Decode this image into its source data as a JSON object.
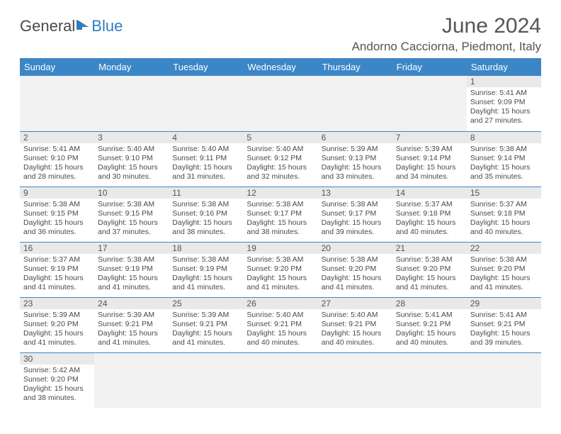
{
  "brand": {
    "part1": "General",
    "part2": "Blue"
  },
  "title": "June 2024",
  "location": "Andorno Cacciorna, Piedmont, Italy",
  "colors": {
    "header_bg": "#3b86c7",
    "header_text": "#ffffff",
    "daynum_bg": "#e9e9e9",
    "empty_bg": "#f2f2f2",
    "rule": "#3b86c7",
    "text": "#4a4a4a"
  },
  "weekdays": [
    "Sunday",
    "Monday",
    "Tuesday",
    "Wednesday",
    "Thursday",
    "Friday",
    "Saturday"
  ],
  "weeks": [
    [
      null,
      null,
      null,
      null,
      null,
      null,
      {
        "n": "1",
        "sr": "5:41 AM",
        "ss": "9:09 PM",
        "dl": "15 hours and 27 minutes."
      }
    ],
    [
      {
        "n": "2",
        "sr": "5:41 AM",
        "ss": "9:10 PM",
        "dl": "15 hours and 28 minutes."
      },
      {
        "n": "3",
        "sr": "5:40 AM",
        "ss": "9:10 PM",
        "dl": "15 hours and 30 minutes."
      },
      {
        "n": "4",
        "sr": "5:40 AM",
        "ss": "9:11 PM",
        "dl": "15 hours and 31 minutes."
      },
      {
        "n": "5",
        "sr": "5:40 AM",
        "ss": "9:12 PM",
        "dl": "15 hours and 32 minutes."
      },
      {
        "n": "6",
        "sr": "5:39 AM",
        "ss": "9:13 PM",
        "dl": "15 hours and 33 minutes."
      },
      {
        "n": "7",
        "sr": "5:39 AM",
        "ss": "9:14 PM",
        "dl": "15 hours and 34 minutes."
      },
      {
        "n": "8",
        "sr": "5:38 AM",
        "ss": "9:14 PM",
        "dl": "15 hours and 35 minutes."
      }
    ],
    [
      {
        "n": "9",
        "sr": "5:38 AM",
        "ss": "9:15 PM",
        "dl": "15 hours and 36 minutes."
      },
      {
        "n": "10",
        "sr": "5:38 AM",
        "ss": "9:15 PM",
        "dl": "15 hours and 37 minutes."
      },
      {
        "n": "11",
        "sr": "5:38 AM",
        "ss": "9:16 PM",
        "dl": "15 hours and 38 minutes."
      },
      {
        "n": "12",
        "sr": "5:38 AM",
        "ss": "9:17 PM",
        "dl": "15 hours and 38 minutes."
      },
      {
        "n": "13",
        "sr": "5:38 AM",
        "ss": "9:17 PM",
        "dl": "15 hours and 39 minutes."
      },
      {
        "n": "14",
        "sr": "5:37 AM",
        "ss": "9:18 PM",
        "dl": "15 hours and 40 minutes."
      },
      {
        "n": "15",
        "sr": "5:37 AM",
        "ss": "9:18 PM",
        "dl": "15 hours and 40 minutes."
      }
    ],
    [
      {
        "n": "16",
        "sr": "5:37 AM",
        "ss": "9:19 PM",
        "dl": "15 hours and 41 minutes."
      },
      {
        "n": "17",
        "sr": "5:38 AM",
        "ss": "9:19 PM",
        "dl": "15 hours and 41 minutes."
      },
      {
        "n": "18",
        "sr": "5:38 AM",
        "ss": "9:19 PM",
        "dl": "15 hours and 41 minutes."
      },
      {
        "n": "19",
        "sr": "5:38 AM",
        "ss": "9:20 PM",
        "dl": "15 hours and 41 minutes."
      },
      {
        "n": "20",
        "sr": "5:38 AM",
        "ss": "9:20 PM",
        "dl": "15 hours and 41 minutes."
      },
      {
        "n": "21",
        "sr": "5:38 AM",
        "ss": "9:20 PM",
        "dl": "15 hours and 41 minutes."
      },
      {
        "n": "22",
        "sr": "5:38 AM",
        "ss": "9:20 PM",
        "dl": "15 hours and 41 minutes."
      }
    ],
    [
      {
        "n": "23",
        "sr": "5:39 AM",
        "ss": "9:20 PM",
        "dl": "15 hours and 41 minutes."
      },
      {
        "n": "24",
        "sr": "5:39 AM",
        "ss": "9:21 PM",
        "dl": "15 hours and 41 minutes."
      },
      {
        "n": "25",
        "sr": "5:39 AM",
        "ss": "9:21 PM",
        "dl": "15 hours and 41 minutes."
      },
      {
        "n": "26",
        "sr": "5:40 AM",
        "ss": "9:21 PM",
        "dl": "15 hours and 40 minutes."
      },
      {
        "n": "27",
        "sr": "5:40 AM",
        "ss": "9:21 PM",
        "dl": "15 hours and 40 minutes."
      },
      {
        "n": "28",
        "sr": "5:41 AM",
        "ss": "9:21 PM",
        "dl": "15 hours and 40 minutes."
      },
      {
        "n": "29",
        "sr": "5:41 AM",
        "ss": "9:21 PM",
        "dl": "15 hours and 39 minutes."
      }
    ],
    [
      {
        "n": "30",
        "sr": "5:42 AM",
        "ss": "9:20 PM",
        "dl": "15 hours and 38 minutes."
      },
      null,
      null,
      null,
      null,
      null,
      null
    ]
  ],
  "labels": {
    "sunrise": "Sunrise:",
    "sunset": "Sunset:",
    "daylight": "Daylight:"
  }
}
